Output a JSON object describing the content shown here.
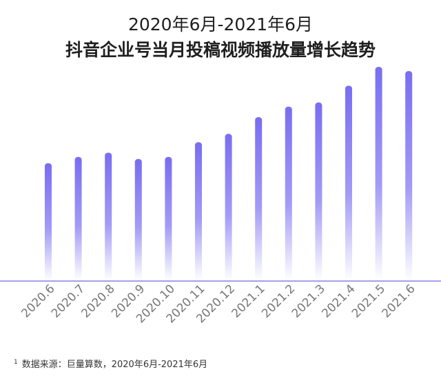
{
  "title_line1": "2020年6月-2021年6月",
  "title_line2": "抖音企业号当月投稿视频播放量增长趋势",
  "source_marker": "1",
  "source_text": "数据来源：巨量算数，2020年6月-2021年6月",
  "colors": {
    "bar_top": "#7a6ef2",
    "bar_bottom": "#ffffff",
    "baseline": "#6f63e8",
    "text": "#1f1f1f",
    "tick": "#777777"
  },
  "chart_data": {
    "type": "bar",
    "categories": [
      "2020.6",
      "2020.7",
      "2020.8",
      "2020.9",
      "2020.10",
      "2020.11",
      "2020.12",
      "2021.1",
      "2021.2",
      "2021.3",
      "2021.4",
      "2021.5",
      "2021.6"
    ],
    "values": [
      55,
      58,
      60,
      57,
      58,
      65,
      69,
      77,
      82,
      84,
      92,
      101,
      99
    ],
    "ylim": [
      0,
      101
    ],
    "xlabel": "",
    "ylabel": "",
    "grid": false,
    "legend": "none",
    "y_axis_shown": false
  }
}
